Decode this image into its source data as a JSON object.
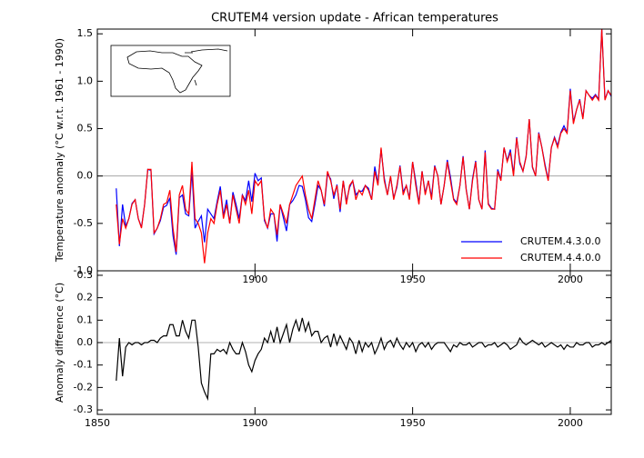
{
  "chart_data": [
    {
      "type": "line",
      "title": "CRUTEM4 version update - African temperatures",
      "y_label": "Temperature anomaly (°C w.r.t. 1961 - 1990)",
      "x": [
        1856,
        1857,
        1858,
        1859,
        1860,
        1861,
        1862,
        1863,
        1864,
        1865,
        1866,
        1867,
        1868,
        1869,
        1870,
        1871,
        1872,
        1873,
        1874,
        1875,
        1876,
        1877,
        1878,
        1879,
        1880,
        1881,
        1882,
        1883,
        1884,
        1885,
        1886,
        1887,
        1888,
        1889,
        1890,
        1891,
        1892,
        1893,
        1894,
        1895,
        1896,
        1897,
        1898,
        1899,
        1900,
        1901,
        1902,
        1903,
        1904,
        1905,
        1906,
        1907,
        1908,
        1909,
        1910,
        1911,
        1912,
        1913,
        1914,
        1915,
        1916,
        1917,
        1918,
        1919,
        1920,
        1921,
        1922,
        1923,
        1924,
        1925,
        1926,
        1927,
        1928,
        1929,
        1930,
        1931,
        1932,
        1933,
        1934,
        1935,
        1936,
        1937,
        1938,
        1939,
        1940,
        1941,
        1942,
        1943,
        1944,
        1945,
        1946,
        1947,
        1948,
        1949,
        1950,
        1951,
        1952,
        1953,
        1954,
        1955,
        1956,
        1957,
        1958,
        1959,
        1960,
        1961,
        1962,
        1963,
        1964,
        1965,
        1966,
        1967,
        1968,
        1969,
        1970,
        1971,
        1972,
        1973,
        1974,
        1975,
        1976,
        1977,
        1978,
        1979,
        1980,
        1981,
        1982,
        1983,
        1984,
        1985,
        1986,
        1987,
        1988,
        1989,
        1990,
        1991,
        1992,
        1993,
        1994,
        1995,
        1996,
        1997,
        1998,
        1999,
        2000,
        2001,
        2002,
        2003,
        2004,
        2005,
        2006,
        2007,
        2008,
        2009,
        2010,
        2011,
        2012,
        2013
      ],
      "series": [
        {
          "name": "CRUTEM.4.3.0.0",
          "color": "#0000ff",
          "values": [
            -0.13,
            -0.74,
            -0.3,
            -0.53,
            -0.45,
            -0.29,
            -0.25,
            -0.45,
            -0.54,
            -0.3,
            0.07,
            0.06,
            -0.61,
            -0.55,
            -0.47,
            -0.33,
            -0.31,
            -0.23,
            -0.63,
            -0.83,
            -0.23,
            -0.2,
            -0.4,
            -0.42,
            0.05,
            -0.55,
            -0.48,
            -0.42,
            -0.7,
            -0.35,
            -0.4,
            -0.45,
            -0.27,
            -0.11,
            -0.42,
            -0.25,
            -0.5,
            -0.17,
            -0.3,
            -0.45,
            -0.2,
            -0.26,
            -0.05,
            -0.27,
            0.03,
            -0.05,
            -0.02,
            -0.47,
            -0.55,
            -0.4,
            -0.4,
            -0.69,
            -0.3,
            -0.44,
            -0.58,
            -0.3,
            -0.26,
            -0.2,
            -0.1,
            -0.11,
            -0.25,
            -0.44,
            -0.48,
            -0.3,
            -0.1,
            -0.15,
            -0.32,
            0.02,
            -0.03,
            -0.24,
            -0.09,
            -0.38,
            -0.05,
            -0.27,
            -0.12,
            -0.05,
            -0.2,
            -0.16,
            -0.16,
            -0.1,
            -0.13,
            -0.25,
            0.1,
            -0.08,
            0.28,
            -0.02,
            -0.2,
            -0.01,
            -0.23,
            -0.12,
            0.11,
            -0.17,
            -0.1,
            -0.23,
            0.15,
            -0.06,
            -0.29,
            0.05,
            -0.18,
            -0.05,
            -0.22,
            0.11,
            0.0,
            -0.3,
            -0.1,
            0.17,
            -0.01,
            -0.24,
            -0.28,
            -0.1,
            0.21,
            -0.14,
            -0.35,
            -0.03,
            0.16,
            -0.25,
            -0.35,
            0.27,
            -0.29,
            -0.34,
            -0.35,
            0.07,
            -0.04,
            0.3,
            0.16,
            0.28,
            0.02,
            0.41,
            0.13,
            0.05,
            0.21,
            0.6,
            0.09,
            0.0,
            0.46,
            0.3,
            0.12,
            -0.04,
            0.3,
            0.41,
            0.32,
            0.46,
            0.53,
            0.46,
            0.92,
            0.57,
            0.7,
            0.81,
            0.61,
            0.9,
            0.85,
            0.82,
            0.86,
            0.81,
            1.55,
            0.81,
            0.9,
            0.84
          ]
        },
        {
          "name": "CRUTEM.4.4.0.0",
          "color": "#ff0000",
          "values": [
            -0.3,
            -0.72,
            -0.45,
            -0.55,
            -0.45,
            -0.3,
            -0.25,
            -0.45,
            -0.55,
            -0.3,
            0.07,
            0.07,
            -0.6,
            -0.55,
            -0.45,
            -0.3,
            -0.28,
            -0.15,
            -0.55,
            -0.8,
            -0.2,
            -0.1,
            -0.35,
            -0.4,
            0.15,
            -0.45,
            -0.5,
            -0.6,
            -0.92,
            -0.6,
            -0.45,
            -0.5,
            -0.3,
            -0.15,
            -0.45,
            -0.3,
            -0.5,
            -0.2,
            -0.35,
            -0.5,
            -0.2,
            -0.3,
            -0.15,
            -0.4,
            -0.05,
            -0.1,
            -0.05,
            -0.45,
            -0.55,
            -0.35,
            -0.4,
            -0.62,
            -0.3,
            -0.4,
            -0.5,
            -0.3,
            -0.2,
            -0.1,
            -0.05,
            0.0,
            -0.2,
            -0.35,
            -0.45,
            -0.25,
            -0.05,
            -0.15,
            -0.3,
            0.05,
            -0.05,
            -0.2,
            -0.1,
            -0.35,
            -0.05,
            -0.3,
            -0.1,
            -0.05,
            -0.25,
            -0.15,
            -0.2,
            -0.1,
            -0.15,
            -0.25,
            0.05,
            -0.1,
            0.3,
            -0.05,
            -0.2,
            0.0,
            -0.25,
            -0.1,
            0.1,
            -0.2,
            -0.1,
            -0.25,
            0.15,
            -0.1,
            -0.3,
            0.05,
            -0.2,
            -0.05,
            -0.25,
            0.1,
            0.0,
            -0.3,
            -0.1,
            0.15,
            -0.05,
            -0.25,
            -0.3,
            -0.1,
            0.2,
            -0.15,
            -0.35,
            -0.05,
            0.15,
            -0.25,
            -0.35,
            0.25,
            -0.3,
            -0.35,
            -0.35,
            0.05,
            -0.05,
            0.3,
            0.15,
            0.25,
            0.0,
            0.4,
            0.15,
            0.05,
            0.2,
            0.6,
            0.1,
            0.0,
            0.45,
            0.3,
            0.1,
            -0.05,
            0.3,
            0.4,
            0.3,
            0.45,
            0.5,
            0.45,
            0.9,
            0.55,
            0.7,
            0.8,
            0.6,
            0.9,
            0.85,
            0.8,
            0.85,
            0.8,
            1.55,
            0.8,
            0.9,
            0.85
          ]
        }
      ],
      "xlim": [
        1850,
        2013
      ],
      "xticks": [
        1900,
        1950,
        2000
      ],
      "ylim": [
        -1.0,
        1.55
      ],
      "yticks": [
        {
          "value": -1.0,
          "label": "-1.0"
        },
        -0.5,
        {
          "value": 0.0,
          "label": "0.0"
        },
        0.5,
        {
          "value": 1.0,
          "label": "1.0"
        },
        1.5
      ],
      "legend": "lower right"
    },
    {
      "type": "line",
      "y_label": "Anomaly difference (°C)",
      "series": [
        {
          "color": "#000000",
          "values": [
            -0.17,
            0.02,
            -0.15,
            -0.02,
            0.0,
            -0.01,
            0.0,
            0.0,
            -0.01,
            0.0,
            0.0,
            0.01,
            0.01,
            0.0,
            0.02,
            0.03,
            0.03,
            0.08,
            0.08,
            0.03,
            0.03,
            0.1,
            0.05,
            0.02,
            0.1,
            0.1,
            -0.02,
            -0.18,
            -0.22,
            -0.25,
            -0.05,
            -0.05,
            -0.03,
            -0.04,
            -0.03,
            -0.05,
            0.0,
            -0.03,
            -0.05,
            -0.05,
            0.0,
            -0.04,
            -0.1,
            -0.13,
            -0.08,
            -0.05,
            -0.03,
            0.02,
            0.0,
            0.05,
            0.0,
            0.07,
            0.0,
            0.04,
            0.08,
            0.0,
            0.06,
            0.1,
            0.05,
            0.11,
            0.05,
            0.09,
            0.03,
            0.05,
            0.05,
            0.0,
            0.02,
            0.03,
            -0.02,
            0.04,
            -0.01,
            0.03,
            0.0,
            -0.03,
            0.02,
            0.0,
            -0.05,
            0.01,
            -0.04,
            0.0,
            -0.02,
            0.0,
            -0.05,
            -0.02,
            0.02,
            -0.03,
            0.0,
            0.01,
            -0.02,
            0.02,
            -0.01,
            -0.03,
            0.0,
            -0.02,
            0.0,
            -0.04,
            -0.01,
            0.0,
            -0.02,
            0.0,
            -0.03,
            -0.01,
            0.0,
            0.0,
            0.0,
            -0.02,
            -0.04,
            -0.01,
            -0.02,
            0.0,
            -0.01,
            -0.01,
            0.0,
            -0.02,
            -0.01,
            0.0,
            0.0,
            -0.02,
            -0.01,
            -0.01,
            0.0,
            -0.02,
            -0.01,
            0.0,
            -0.01,
            -0.03,
            -0.02,
            -0.01,
            0.02,
            0.0,
            -0.01,
            0.0,
            0.01,
            0.0,
            -0.01,
            0.0,
            -0.02,
            -0.01,
            0.0,
            -0.01,
            -0.02,
            -0.01,
            -0.03,
            -0.01,
            -0.02,
            -0.02,
            0.0,
            -0.01,
            -0.01,
            0.0,
            0.0,
            -0.02,
            -0.01,
            -0.01,
            0.0,
            -0.01,
            0.0,
            0.01
          ]
        }
      ],
      "xlim": [
        1850,
        2013
      ],
      "xticks": [
        1850,
        1900,
        1950,
        2000
      ],
      "ylim": [
        -0.32,
        0.32
      ],
      "yticks": [
        -0.3,
        -0.2,
        -0.1,
        {
          "value": 0.0,
          "label": "0.0"
        },
        0.1,
        0.2,
        0.3
      ]
    }
  ]
}
